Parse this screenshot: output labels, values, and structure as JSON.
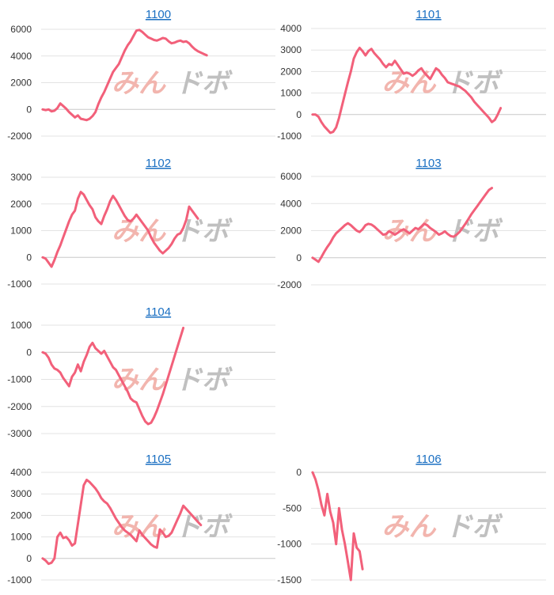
{
  "colors": {
    "series": "#f2607a",
    "title": "#1a6fc2",
    "watermark_left": "#f2b5ae",
    "watermark_right": "#c0c0c0"
  },
  "watermark": {
    "left": "みん",
    "right": "ドボ"
  },
  "chart_data": [
    {
      "type": "line",
      "title": "1100",
      "ylim": [
        -2000,
        6000
      ],
      "yticks": [
        6000,
        4000,
        2000,
        0,
        -2000
      ],
      "grid": true,
      "series": [
        {
          "values": [
            0,
            -50,
            0,
            -150,
            -100,
            100,
            450,
            250,
            50,
            -200,
            -400,
            -600,
            -450,
            -700,
            -750,
            -800,
            -700,
            -500,
            -200,
            400,
            900,
            1300,
            1800,
            2300,
            2800,
            3100,
            3400,
            3900,
            4400,
            4800,
            5100,
            5500,
            5900,
            5950,
            5800,
            5600,
            5400,
            5300,
            5200,
            5150,
            5250,
            5350,
            5300,
            5100,
            4950,
            5000,
            5100,
            5150,
            5050,
            5100,
            4950,
            4700,
            4500,
            4350,
            4250,
            4150,
            4050
          ]
        }
      ]
    },
    {
      "type": "line",
      "title": "1101",
      "ylim": [
        -1000,
        4000
      ],
      "yticks": [
        4000,
        3000,
        2000,
        1000,
        0,
        -1000
      ],
      "grid": true,
      "series": [
        {
          "values": [
            0,
            0,
            -100,
            -350,
            -550,
            -700,
            -850,
            -800,
            -600,
            -150,
            400,
            950,
            1500,
            2000,
            2600,
            2900,
            3100,
            2950,
            2750,
            2950,
            3050,
            2850,
            2700,
            2550,
            2350,
            2200,
            2350,
            2300,
            2500,
            2300,
            2100,
            1900,
            1950,
            1900,
            1800,
            1900,
            2050,
            2150,
            1950,
            1800,
            1650,
            1900,
            2150,
            2050,
            1850,
            1700,
            1500,
            1450,
            1400,
            1350,
            1300,
            1200,
            1100,
            950,
            800,
            600,
            450,
            300,
            150,
            0,
            -150,
            -350,
            -250,
            0,
            300
          ]
        }
      ]
    },
    {
      "type": "line",
      "title": "1102",
      "ylim": [
        -1000,
        3000
      ],
      "yticks": [
        3000,
        2000,
        1000,
        0,
        -1000
      ],
      "grid": true,
      "series": [
        {
          "values": [
            0,
            -50,
            -200,
            -350,
            -100,
            200,
            450,
            750,
            1050,
            1350,
            1600,
            1750,
            2200,
            2450,
            2350,
            2150,
            1950,
            1800,
            1500,
            1350,
            1250,
            1550,
            1800,
            2100,
            2300,
            2150,
            1950,
            1750,
            1550,
            1400,
            1350,
            1450,
            1600,
            1450,
            1300,
            1150,
            1000,
            750,
            550,
            400,
            250,
            150,
            250,
            350,
            500,
            700,
            850,
            900,
            1100,
            1400,
            1900,
            1750,
            1600,
            1450
          ]
        }
      ]
    },
    {
      "type": "line",
      "title": "1103",
      "ylim": [
        -2000,
        6000
      ],
      "yticks": [
        6000,
        4000,
        2000,
        0,
        -2000
      ],
      "grid": true,
      "series": [
        {
          "values": [
            0,
            -150,
            -300,
            50,
            450,
            800,
            1100,
            1500,
            1800,
            2000,
            2200,
            2400,
            2550,
            2400,
            2200,
            2000,
            1900,
            2100,
            2400,
            2500,
            2450,
            2300,
            2100,
            1900,
            1700,
            1750,
            1950,
            1850,
            1700,
            1850,
            2000,
            2100,
            1950,
            1800,
            2000,
            2200,
            2100,
            2300,
            2500,
            2400,
            2200,
            2050,
            1900,
            1700,
            1800,
            1950,
            1750,
            1600,
            1550,
            1700,
            1900,
            2200,
            2500,
            2850,
            3200,
            3500,
            3800,
            4100,
            4400,
            4700,
            5000,
            5150
          ]
        }
      ]
    },
    {
      "type": "line",
      "title": "1104",
      "ylim": [
        -3000,
        1000
      ],
      "yticks": [
        1000,
        0,
        -1000,
        -2000,
        -3000
      ],
      "grid": true,
      "series": [
        {
          "values": [
            0,
            -50,
            -200,
            -450,
            -600,
            -650,
            -750,
            -950,
            -1100,
            -1250,
            -900,
            -750,
            -450,
            -700,
            -350,
            -100,
            200,
            350,
            150,
            50,
            -50,
            50,
            -150,
            -350,
            -550,
            -650,
            -850,
            -1050,
            -1250,
            -1450,
            -1700,
            -1800,
            -1850,
            -2100,
            -2350,
            -2550,
            -2650,
            -2600,
            -2400,
            -2150,
            -1850,
            -1550,
            -1200,
            -850,
            -500,
            -150,
            200,
            550,
            900
          ]
        }
      ]
    },
    {
      "type": "line",
      "title": "1105",
      "ylim": [
        -1000,
        4000
      ],
      "yticks": [
        4000,
        3000,
        2000,
        1000,
        0,
        -1000
      ],
      "grid": true,
      "series": [
        {
          "values": [
            0,
            -100,
            -250,
            -200,
            0,
            1000,
            1200,
            950,
            1000,
            850,
            600,
            700,
            1600,
            2500,
            3400,
            3650,
            3550,
            3400,
            3250,
            3050,
            2800,
            2650,
            2550,
            2350,
            2100,
            1850,
            1650,
            1450,
            1300,
            1200,
            1100,
            950,
            800,
            1300,
            1100,
            950,
            800,
            650,
            550,
            500,
            1350,
            1200,
            1000,
            1050,
            1200,
            1500,
            1800,
            2100,
            2450,
            2300,
            2150,
            2000,
            1850,
            1700,
            1550
          ]
        }
      ]
    },
    {
      "type": "line",
      "title": "1106",
      "ylim": [
        -1500,
        0
      ],
      "yticks": [
        0,
        -500,
        -1000,
        -1500
      ],
      "grid": true,
      "series": [
        {
          "values": [
            0,
            -100,
            -250,
            -450,
            -600,
            -300,
            -550,
            -700,
            -1000,
            -500,
            -800,
            -1000,
            -1250,
            -1500,
            -850,
            -1050,
            -1100,
            -1350
          ]
        }
      ]
    }
  ]
}
